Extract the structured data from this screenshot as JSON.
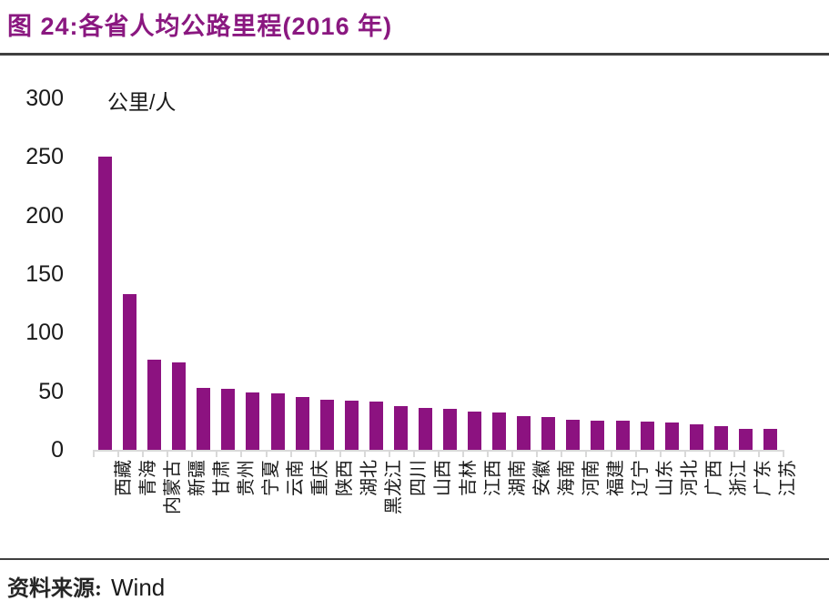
{
  "page": {
    "title": "图 24:各省人均公路里程(2016 年)",
    "source_prefix": "资料来源:",
    "source_name": "Wind"
  },
  "colors": {
    "bar": "#8C1280",
    "title": "#8A1880",
    "rule": "#3F3F3F",
    "axis": "#D9D9D9"
  },
  "chart_data": {
    "type": "bar",
    "title": "各省人均公路里程(2016 年)",
    "unit_label": "公里/人",
    "xlabel": "",
    "ylabel": "公里/人",
    "ylim": [
      0,
      300
    ],
    "yticks": [
      0,
      50,
      100,
      150,
      200,
      250,
      300
    ],
    "grid": false,
    "legend": "none",
    "categories": [
      "西藏",
      "青海",
      "内蒙古",
      "新疆",
      "甘肃",
      "贵州",
      "宁夏",
      "云南",
      "重庆",
      "陕西",
      "湖北",
      "黑龙江",
      "四川",
      "山西",
      "吉林",
      "江西",
      "湖南",
      "安徽",
      "海南",
      "河南",
      "福建",
      "辽宁",
      "山东",
      "河北",
      "广西",
      "浙江",
      "广东",
      "江苏"
    ],
    "values": [
      250,
      133,
      77,
      75,
      53,
      52,
      49,
      48,
      45,
      43,
      42,
      41,
      37,
      36,
      35,
      33,
      32,
      29,
      28,
      26,
      25,
      25,
      24,
      23,
      22,
      20,
      18,
      18
    ]
  }
}
